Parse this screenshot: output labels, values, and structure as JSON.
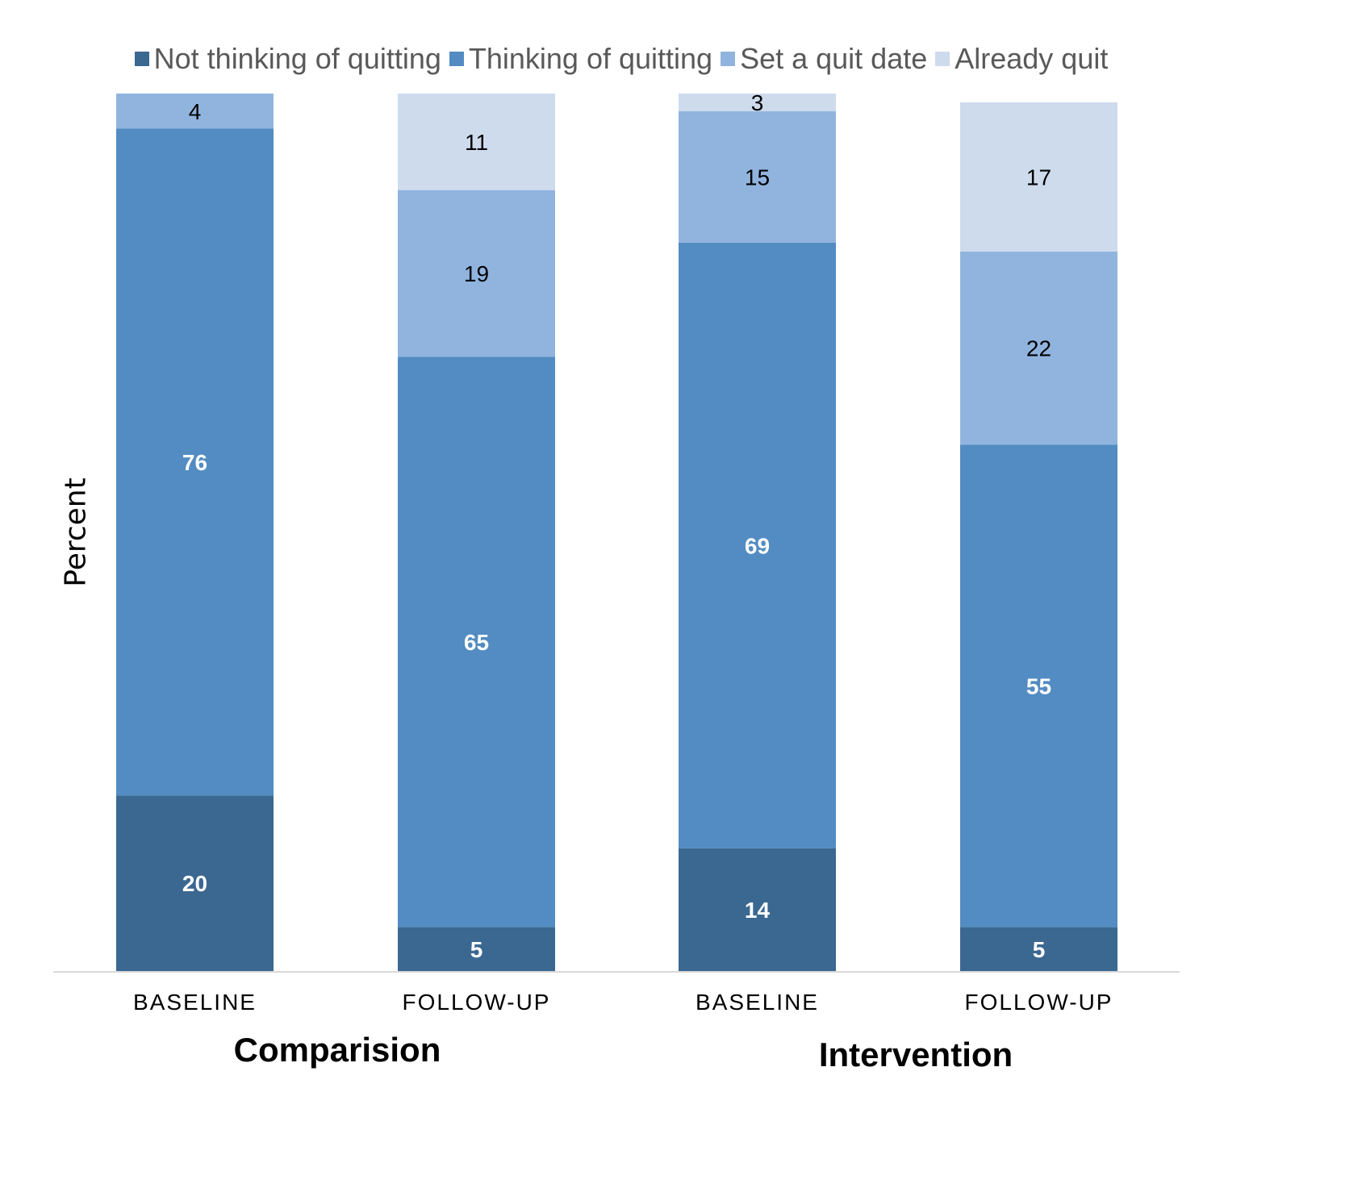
{
  "chart_data": {
    "type": "bar",
    "stacked": true,
    "title": "",
    "xlabel": "",
    "ylabel": "Percent",
    "ylim": [
      0,
      100
    ],
    "grid": false,
    "legend_position": "top-center",
    "categories": [
      "BASELINE",
      "FOLLOW-UP",
      "BASELINE",
      "FOLLOW-UP"
    ],
    "groups": [
      {
        "label": "Comparision",
        "categories": [
          0,
          1
        ]
      },
      {
        "label": "Intervention",
        "categories": [
          2,
          3
        ]
      }
    ],
    "series": [
      {
        "name": "Not thinking of quitting",
        "color": "#3b6891",
        "label_color": "#ffffff",
        "label_bold": true,
        "values": [
          20,
          5,
          14,
          5
        ]
      },
      {
        "name": "Thinking of quitting",
        "color": "#528cc2",
        "label_color": "#ffffff",
        "label_bold": true,
        "values": [
          76,
          65,
          69,
          55
        ]
      },
      {
        "name": "Set a quit date",
        "color": "#90b4de",
        "label_color": "#000000",
        "label_bold": false,
        "values": [
          4,
          19,
          15,
          22
        ]
      },
      {
        "name": "Already quit",
        "color": "#cedbed",
        "label_color": "#000000",
        "label_bold": false,
        "values": [
          null,
          11,
          3,
          17
        ]
      }
    ]
  }
}
